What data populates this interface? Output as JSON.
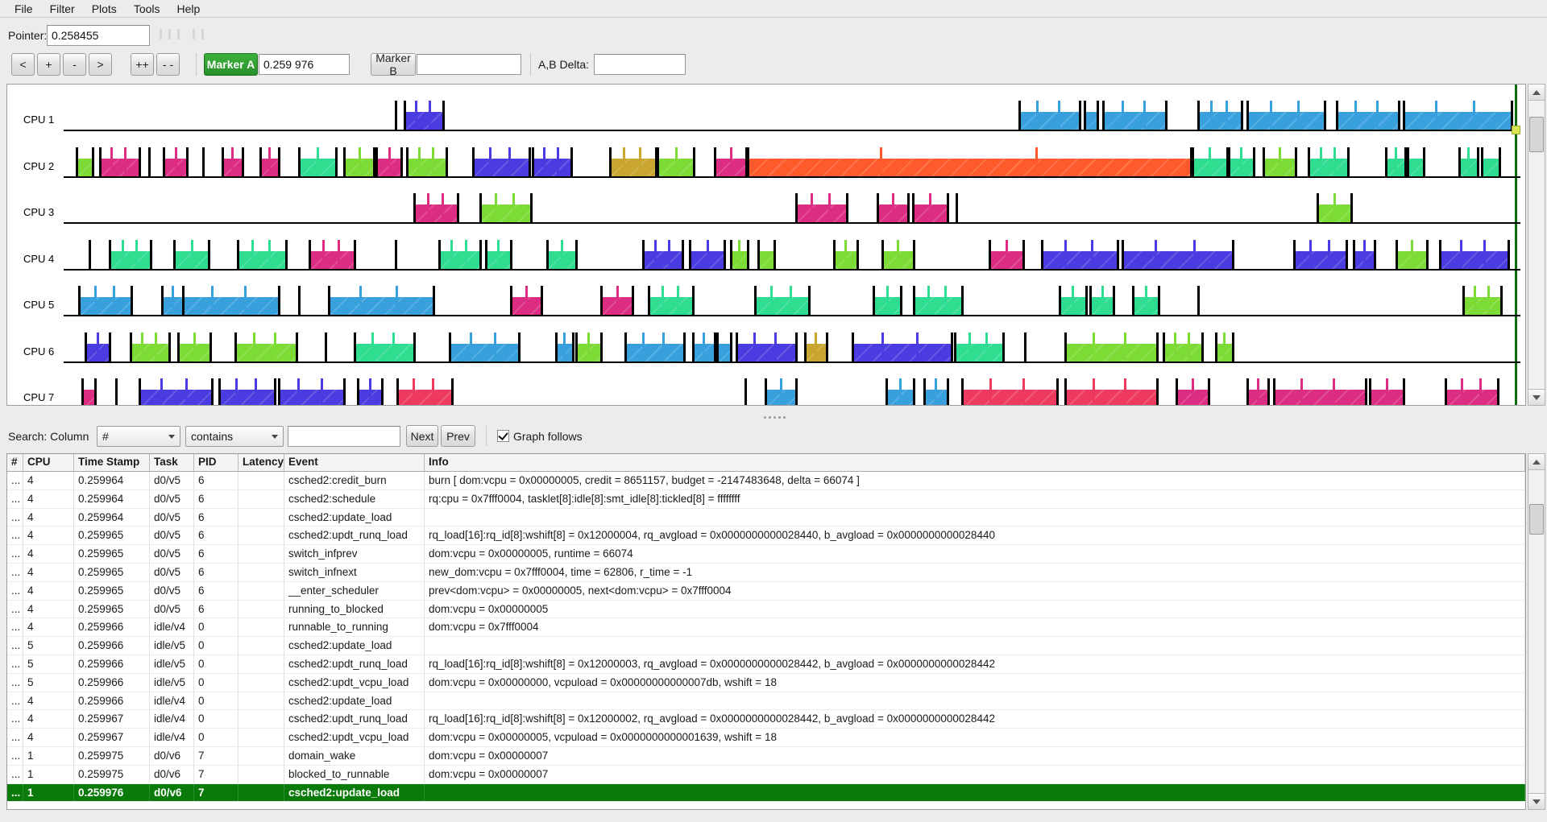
{
  "menu": {
    "items": [
      "File",
      "Filter",
      "Plots",
      "Tools",
      "Help"
    ]
  },
  "pointer": {
    "label": "Pointer:",
    "value": "0.258455"
  },
  "toolbar": {
    "nav_buttons": [
      "<",
      "+",
      "-",
      ">",
      "++",
      "- -"
    ],
    "marker_a": {
      "label": "Marker A",
      "value": "0.259 976"
    },
    "marker_b": {
      "label": "Marker B",
      "value": ""
    },
    "ab_delta": {
      "label": "A,B Delta:",
      "value": ""
    }
  },
  "graph": {
    "colors": {
      "blue": "#38a0dd",
      "teal": "#2edd90",
      "green": "#7cdc35",
      "pink": "#dd2d82",
      "red": "#ee3a5e",
      "violet": "#4a3ce0",
      "orange": "#ff5a2c",
      "olive": "#c9a630"
    },
    "marker": {
      "pos_pct": 99.7,
      "line_color": "#0c6e0c",
      "square_color": "#d9e752"
    },
    "cpus": [
      {
        "label": "CPU 1",
        "segments": [
          [
            23.4,
            26.1,
            "violet"
          ],
          [
            65.6,
            69.8,
            "blue"
          ],
          [
            70.1,
            71.0,
            "blue"
          ],
          [
            71.4,
            75.7,
            "blue"
          ],
          [
            77.9,
            80.9,
            "blue"
          ],
          [
            81.3,
            86.6,
            "blue"
          ],
          [
            87.4,
            91.7,
            "blue"
          ],
          [
            92.0,
            99.4,
            "blue"
          ]
        ],
        "ticks": [
          22.8
        ]
      },
      {
        "label": "CPU 2",
        "segments": [
          [
            0.9,
            2.0,
            "green"
          ],
          [
            2.5,
            5.2,
            "pink"
          ],
          [
            6.9,
            8.5,
            "pink"
          ],
          [
            10.9,
            12.3,
            "pink"
          ],
          [
            13.5,
            14.8,
            "pink"
          ],
          [
            16.2,
            18.7,
            "teal"
          ],
          [
            19.3,
            21.3,
            "green"
          ],
          [
            21.5,
            23.2,
            "pink"
          ],
          [
            23.6,
            26.3,
            "green"
          ],
          [
            28.1,
            32.0,
            "violet"
          ],
          [
            32.2,
            34.9,
            "violet"
          ],
          [
            37.5,
            40.7,
            "olive"
          ],
          [
            40.8,
            43.3,
            "green"
          ],
          [
            44.7,
            46.9,
            "pink"
          ],
          [
            47.0,
            77.4,
            "orange"
          ],
          [
            77.5,
            79.9,
            "teal"
          ],
          [
            80.0,
            81.7,
            "teal"
          ],
          [
            82.4,
            84.6,
            "green"
          ],
          [
            85.5,
            88.2,
            "teal"
          ],
          [
            90.8,
            92.1,
            "teal"
          ],
          [
            92.3,
            93.4,
            "teal"
          ],
          [
            95.8,
            97.1,
            "teal"
          ],
          [
            97.4,
            98.6,
            "teal"
          ]
        ],
        "ticks": [
          5.9,
          9.6
        ]
      },
      {
        "label": "CPU 3",
        "segments": [
          [
            24.1,
            27.1,
            "pink"
          ],
          [
            28.6,
            32.1,
            "green"
          ],
          [
            50.3,
            53.8,
            "pink"
          ],
          [
            55.9,
            58.0,
            "pink"
          ],
          [
            58.3,
            60.7,
            "pink"
          ],
          [
            86.1,
            88.4,
            "green"
          ]
        ],
        "ticks": [
          61.3
        ]
      },
      {
        "label": "CPU 4",
        "segments": [
          [
            3.2,
            6.0,
            "teal"
          ],
          [
            7.6,
            10.0,
            "teal"
          ],
          [
            12.0,
            15.3,
            "teal"
          ],
          [
            16.9,
            20.0,
            "pink"
          ],
          [
            25.8,
            28.6,
            "teal"
          ],
          [
            29.0,
            30.7,
            "teal"
          ],
          [
            33.2,
            35.2,
            "teal"
          ],
          [
            39.8,
            42.5,
            "violet"
          ],
          [
            43.0,
            45.4,
            "violet"
          ],
          [
            45.8,
            47.0,
            "green"
          ],
          [
            47.7,
            48.8,
            "green"
          ],
          [
            52.9,
            54.5,
            "green"
          ],
          [
            56.2,
            58.4,
            "green"
          ],
          [
            63.6,
            65.9,
            "pink"
          ],
          [
            67.2,
            72.4,
            "violet"
          ],
          [
            72.7,
            80.3,
            "violet"
          ],
          [
            84.5,
            88.1,
            "violet"
          ],
          [
            88.6,
            90.0,
            "violet"
          ],
          [
            91.5,
            93.6,
            "green"
          ],
          [
            94.5,
            99.2,
            "violet"
          ]
        ],
        "ticks": [
          1.8,
          22.8
        ]
      },
      {
        "label": "CPU 5",
        "segments": [
          [
            1.1,
            4.7,
            "blue"
          ],
          [
            6.8,
            8.2,
            "blue"
          ],
          [
            8.2,
            14.8,
            "blue"
          ],
          [
            18.2,
            25.4,
            "blue"
          ],
          [
            30.7,
            32.8,
            "pink"
          ],
          [
            36.9,
            39.1,
            "pink"
          ],
          [
            40.2,
            43.2,
            "teal"
          ],
          [
            47.5,
            51.2,
            "teal"
          ],
          [
            55.6,
            57.5,
            "teal"
          ],
          [
            58.4,
            61.7,
            "teal"
          ],
          [
            68.4,
            70.2,
            "teal"
          ],
          [
            70.5,
            72.1,
            "teal"
          ],
          [
            73.4,
            75.2,
            "teal"
          ],
          [
            96.1,
            98.7,
            "green"
          ]
        ],
        "ticks": [
          16.2,
          77.9
        ]
      },
      {
        "label": "CPU 6",
        "segments": [
          [
            1.5,
            3.2,
            "violet"
          ],
          [
            4.6,
            7.3,
            "green"
          ],
          [
            7.9,
            10.1,
            "green"
          ],
          [
            11.8,
            16.0,
            "green"
          ],
          [
            20.0,
            24.1,
            "teal"
          ],
          [
            26.5,
            31.3,
            "blue"
          ],
          [
            33.8,
            35.0,
            "blue"
          ],
          [
            35.2,
            36.9,
            "green"
          ],
          [
            38.6,
            42.6,
            "blue"
          ],
          [
            43.2,
            44.7,
            "blue"
          ],
          [
            44.9,
            45.8,
            "blue"
          ],
          [
            46.2,
            50.3,
            "violet"
          ],
          [
            50.9,
            52.4,
            "olive"
          ],
          [
            54.2,
            61.0,
            "violet"
          ],
          [
            61.2,
            64.5,
            "teal"
          ],
          [
            68.8,
            75.1,
            "green"
          ],
          [
            75.5,
            78.2,
            "green"
          ],
          [
            79.1,
            80.3,
            "green"
          ]
        ],
        "ticks": [
          18.0,
          66.0
        ]
      },
      {
        "label": "CPU 7",
        "segments": [
          [
            1.3,
            2.2,
            "pink"
          ],
          [
            5.2,
            10.2,
            "violet"
          ],
          [
            10.7,
            14.5,
            "violet"
          ],
          [
            14.8,
            19.3,
            "violet"
          ],
          [
            20.2,
            21.9,
            "violet"
          ],
          [
            22.9,
            26.7,
            "red"
          ],
          [
            48.2,
            50.3,
            "blue"
          ],
          [
            56.5,
            58.4,
            "blue"
          ],
          [
            59.1,
            60.7,
            "blue"
          ],
          [
            61.7,
            68.2,
            "red"
          ],
          [
            68.8,
            75.1,
            "red"
          ],
          [
            76.4,
            78.6,
            "pink"
          ],
          [
            81.3,
            82.7,
            "pink"
          ],
          [
            83.1,
            89.4,
            "pink"
          ],
          [
            89.7,
            92.0,
            "pink"
          ],
          [
            94.9,
            98.5,
            "pink"
          ]
        ],
        "ticks": [
          3.6,
          46.8
        ]
      }
    ]
  },
  "search": {
    "label": "Search: Column",
    "column_value": "#",
    "op_value": "contains",
    "query": "",
    "next_label": "Next",
    "prev_label": "Prev",
    "graph_follows_label": "Graph follows",
    "graph_follows_checked": true
  },
  "table": {
    "columns": [
      "#",
      "CPU",
      "Time Stamp",
      "Task",
      "PID",
      "Latency",
      "Event",
      "Info"
    ],
    "selected_index": 17,
    "rows": [
      [
        "...",
        "4",
        "0.259964",
        "d0/v5",
        "6",
        "",
        "csched2:credit_burn",
        "burn [ dom:vcpu = 0x00000005, credit = 8651157, budget = -2147483648, delta = 66074 ]"
      ],
      [
        "...",
        "4",
        "0.259964",
        "d0/v5",
        "6",
        "",
        "csched2:schedule",
        "rq:cpu = 0x7fff0004, tasklet[8]:idle[8]:smt_idle[8]:tickled[8] = ffffffff"
      ],
      [
        "...",
        "4",
        "0.259964",
        "d0/v5",
        "6",
        "",
        "csched2:update_load",
        ""
      ],
      [
        "...",
        "4",
        "0.259965",
        "d0/v5",
        "6",
        "",
        "csched2:updt_runq_load",
        "rq_load[16]:rq_id[8]:wshift[8] = 0x12000004, rq_avgload = 0x0000000000028440, b_avgload = 0x0000000000028440"
      ],
      [
        "...",
        "4",
        "0.259965",
        "d0/v5",
        "6",
        "",
        "switch_infprev",
        "dom:vcpu = 0x00000005, runtime = 66074"
      ],
      [
        "...",
        "4",
        "0.259965",
        "d0/v5",
        "6",
        "",
        "switch_infnext",
        "new_dom:vcpu = 0x7fff0004, time = 62806, r_time = -1"
      ],
      [
        "...",
        "4",
        "0.259965",
        "d0/v5",
        "6",
        "",
        "__enter_scheduler",
        "prev<dom:vcpu> = 0x00000005, next<dom:vcpu> = 0x7fff0004"
      ],
      [
        "...",
        "4",
        "0.259965",
        "d0/v5",
        "6",
        "",
        "running_to_blocked",
        "dom:vcpu = 0x00000005"
      ],
      [
        "...",
        "4",
        "0.259966",
        "idle/v4",
        "0",
        "",
        "runnable_to_running",
        "dom:vcpu = 0x7fff0004"
      ],
      [
        "...",
        "5",
        "0.259966",
        "idle/v5",
        "0",
        "",
        "csched2:update_load",
        ""
      ],
      [
        "...",
        "5",
        "0.259966",
        "idle/v5",
        "0",
        "",
        "csched2:updt_runq_load",
        "rq_load[16]:rq_id[8]:wshift[8] = 0x12000003, rq_avgload = 0x0000000000028442, b_avgload = 0x0000000000028442"
      ],
      [
        "...",
        "5",
        "0.259966",
        "idle/v5",
        "0",
        "",
        "csched2:updt_vcpu_load",
        "dom:vcpu = 0x00000000, vcpuload = 0x00000000000007db, wshift = 18"
      ],
      [
        "...",
        "4",
        "0.259966",
        "idle/v4",
        "0",
        "",
        "csched2:update_load",
        ""
      ],
      [
        "...",
        "4",
        "0.259967",
        "idle/v4",
        "0",
        "",
        "csched2:updt_runq_load",
        "rq_load[16]:rq_id[8]:wshift[8] = 0x12000002, rq_avgload = 0x0000000000028442, b_avgload = 0x0000000000028442"
      ],
      [
        "...",
        "4",
        "0.259967",
        "idle/v4",
        "0",
        "",
        "csched2:updt_vcpu_load",
        "dom:vcpu = 0x00000005, vcpuload = 0x0000000000001639, wshift = 18"
      ],
      [
        "...",
        "1",
        "0.259975",
        "d0/v6",
        "7",
        "",
        "domain_wake",
        "dom:vcpu = 0x00000007"
      ],
      [
        "...",
        "1",
        "0.259975",
        "d0/v6",
        "7",
        "",
        "blocked_to_runnable",
        "dom:vcpu = 0x00000007"
      ],
      [
        "...",
        "1",
        "0.259976",
        "d0/v6",
        "7",
        "",
        "csched2:update_load",
        ""
      ]
    ]
  }
}
